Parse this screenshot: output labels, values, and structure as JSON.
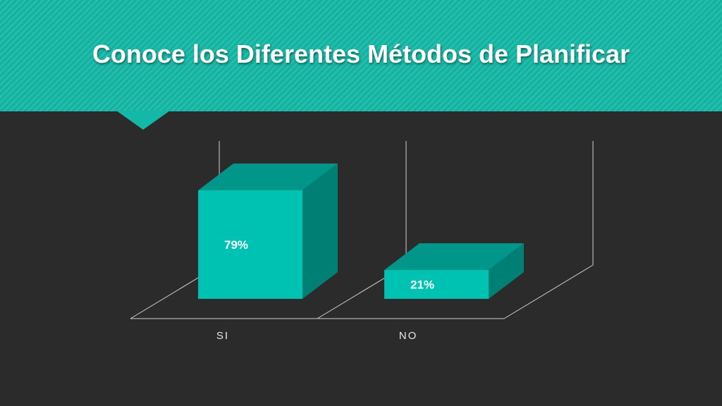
{
  "slide": {
    "title": "Conoce los Diferentes Métodos de Planificar"
  },
  "colors": {
    "header": "#14b8a6",
    "background": "#2b2b2b",
    "bar_front": "#00c2b2",
    "bar_top": "#00968a",
    "bar_side": "#008075",
    "axis_line": "#cfcfcf"
  },
  "chart_data": {
    "type": "bar",
    "style": "3d",
    "categories": [
      "SI",
      "NO"
    ],
    "values": [
      79,
      21
    ],
    "data_labels": [
      "79%",
      "21%"
    ],
    "ylim": [
      0,
      100
    ],
    "legend": false,
    "grid": false
  }
}
